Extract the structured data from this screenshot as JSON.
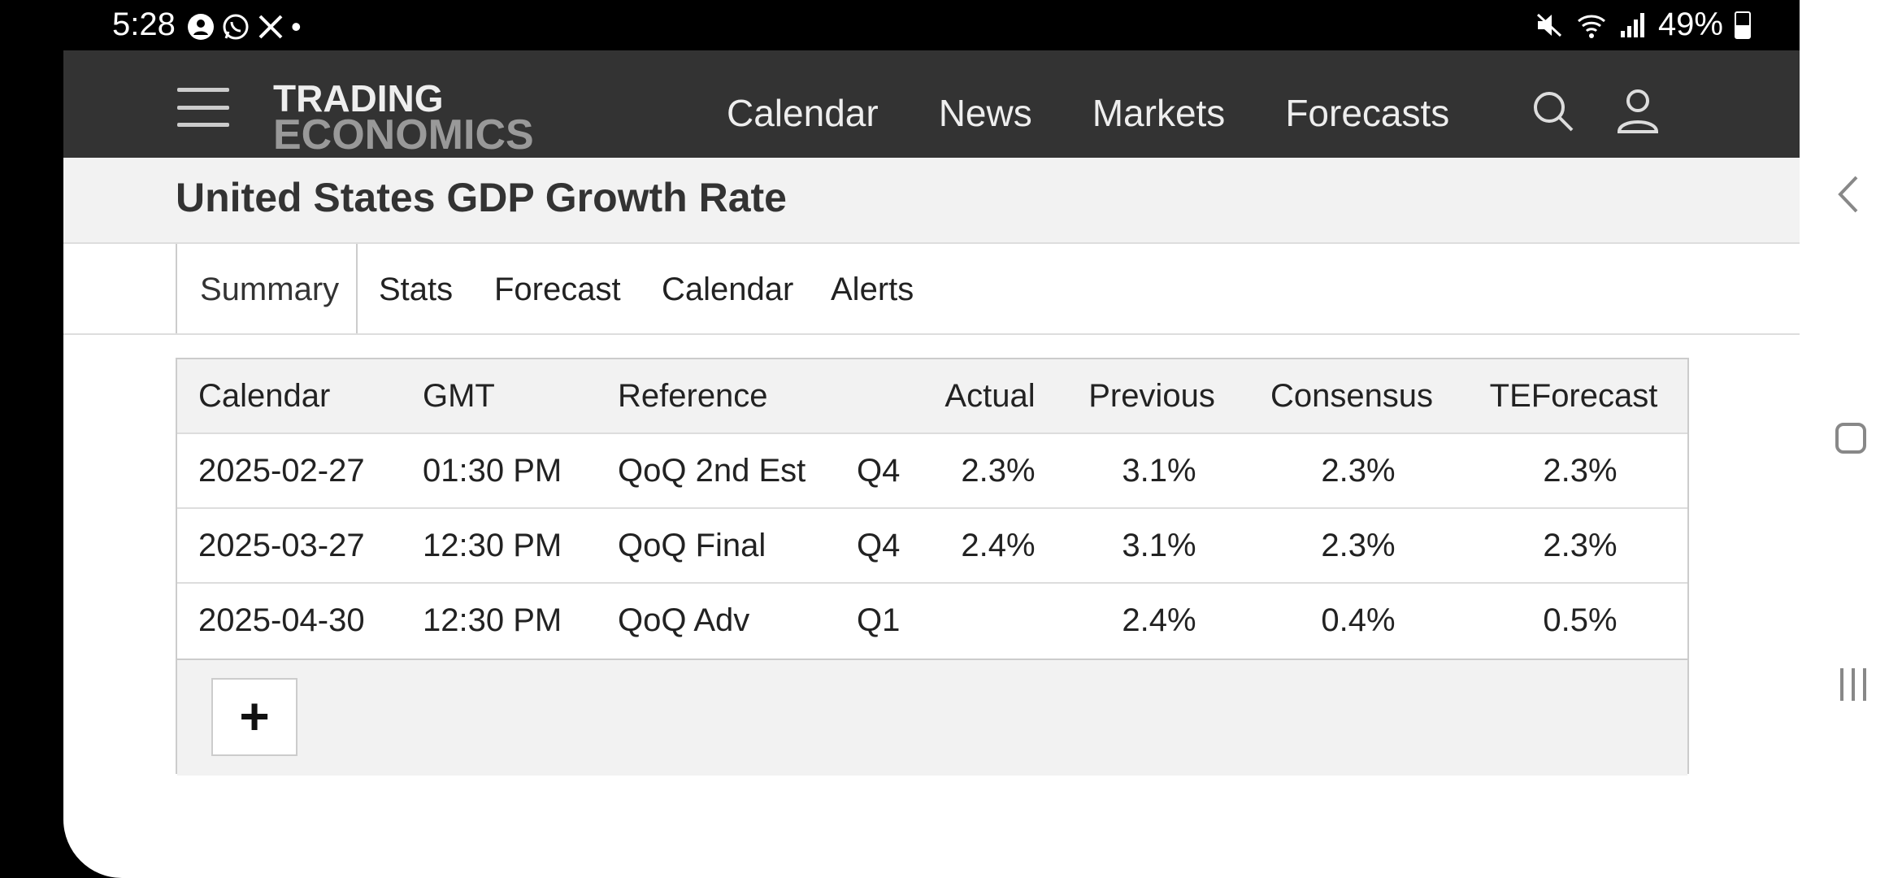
{
  "status": {
    "time": "5:28",
    "left_icons": [
      "account-circle-icon",
      "whatsapp-icon",
      "x-icon"
    ],
    "dot": "•",
    "battery": "49%"
  },
  "nav": {
    "logo_line1": "TRADING",
    "logo_line2": "ECONOMICS",
    "links": [
      "Calendar",
      "News",
      "Markets",
      "Forecasts"
    ]
  },
  "page": {
    "title": "United States GDP Growth Rate"
  },
  "tabs": [
    "Summary",
    "Stats",
    "Forecast",
    "Calendar",
    "Alerts"
  ],
  "table": {
    "headers": [
      "Calendar",
      "GMT",
      "Reference",
      "",
      "Actual",
      "Previous",
      "Consensus",
      "TEForecast"
    ],
    "rows": [
      [
        "2025-02-27",
        "01:30 PM",
        "QoQ 2nd Est",
        "Q4",
        "2.3%",
        "3.1%",
        "2.3%",
        "2.3%"
      ],
      [
        "2025-03-27",
        "12:30 PM",
        "QoQ Final",
        "Q4",
        "2.4%",
        "3.1%",
        "2.3%",
        "2.3%"
      ],
      [
        "2025-04-30",
        "12:30 PM",
        "QoQ Adv",
        "Q1",
        "",
        "2.4%",
        "0.4%",
        "0.5%"
      ]
    ],
    "add_label": "+"
  },
  "colors": {
    "nav_bg": "#333333",
    "title_bg": "#f2f2f2"
  }
}
